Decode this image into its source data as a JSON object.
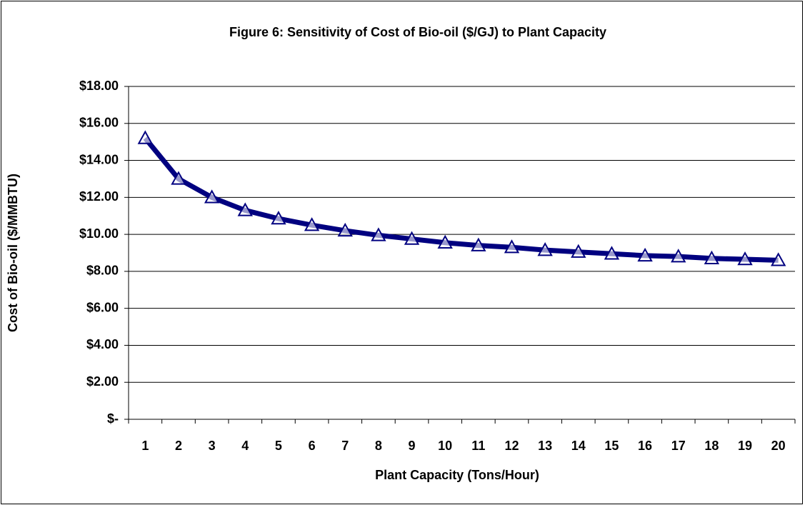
{
  "chart_data": {
    "type": "line",
    "title": "Figure 6: Sensitivity of Cost of Bio-oil ($/GJ) to Plant Capacity",
    "x_label": "Plant Capacity (Tons/Hour)",
    "y_label": "Cost of Bio-oil ($/MMBTU)",
    "categories": [
      "1",
      "2",
      "3",
      "4",
      "5",
      "6",
      "7",
      "8",
      "9",
      "10",
      "11",
      "12",
      "13",
      "14",
      "15",
      "16",
      "17",
      "18",
      "19",
      "20"
    ],
    "values": [
      15.2,
      13.0,
      12.0,
      11.3,
      10.85,
      10.5,
      10.2,
      9.95,
      9.75,
      9.55,
      9.4,
      9.3,
      9.15,
      9.05,
      8.95,
      8.85,
      8.8,
      8.7,
      8.65,
      8.6
    ],
    "color": "#000080",
    "ylim": [
      0,
      18
    ],
    "yticks": [
      {
        "value": 0,
        "label": "$-"
      },
      {
        "value": 2,
        "label": "$2.00"
      },
      {
        "value": 4,
        "label": "$4.00"
      },
      {
        "value": 6,
        "label": "$6.00"
      },
      {
        "value": 8,
        "label": "$8.00"
      },
      {
        "value": 10,
        "label": "$10.00"
      },
      {
        "value": 12,
        "label": "$12.00"
      },
      {
        "value": 14,
        "label": "$14.00"
      },
      {
        "value": 16,
        "label": "$16.00"
      },
      {
        "value": 18,
        "label": "$18.00"
      }
    ],
    "grid": true
  }
}
